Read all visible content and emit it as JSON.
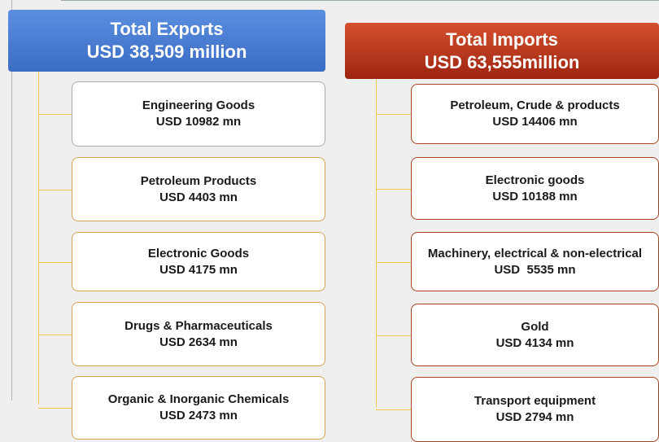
{
  "exports": {
    "title": "Total Exports",
    "amount": "USD 38,509 million",
    "items": [
      {
        "name": "Engineering Goods",
        "value": "USD 10982 mn"
      },
      {
        "name": "Petroleum Products",
        "value": "USD 4403 mn"
      },
      {
        "name": "Electronic Goods",
        "value": "USD 4175 mn"
      },
      {
        "name": "Drugs & Pharmaceuticals",
        "value": "USD 2634 mn"
      },
      {
        "name": "Organic & Inorganic Chemicals",
        "value": "USD 2473 mn"
      }
    ]
  },
  "imports": {
    "title": "Total Imports",
    "amount": "USD 63,555million",
    "items": [
      {
        "name": "Petroleum, Crude & products",
        "value": "USD 14406 mn"
      },
      {
        "name": "Electronic goods",
        "value": "USD 10188 mn"
      },
      {
        "name": "Machinery, electrical & non-electrical",
        "value": "USD  5535 mn"
      },
      {
        "name": "Gold",
        "value": "USD 4134 mn"
      },
      {
        "name": "Transport equipment",
        "value": "USD 2794 mn"
      }
    ]
  }
}
